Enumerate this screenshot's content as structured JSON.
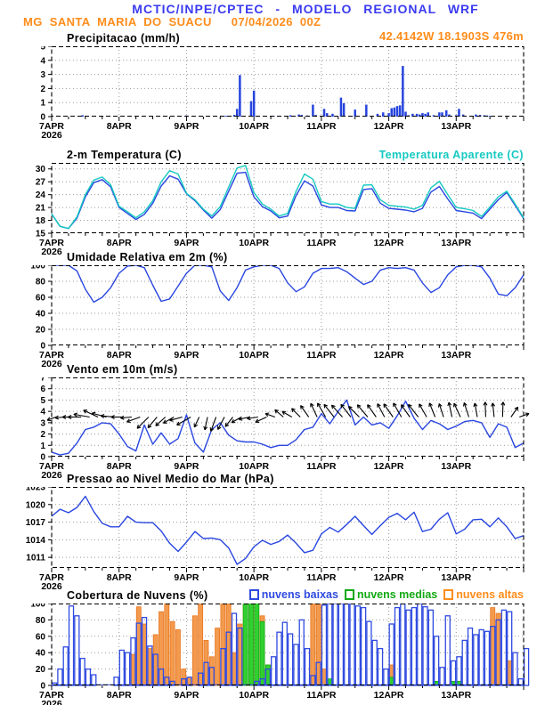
{
  "header": {
    "title": "MCTIC/INPE/CPTEC - MODELO REGIONAL WRF",
    "station": "MG SANTA MARIA DO SUACU",
    "run_datetime": "07/04/2026 00Z",
    "location": "42.4142W 18.1903S 476m"
  },
  "colors": {
    "title_blue": "#3b3bf2",
    "orange_text": "#ff8c1a",
    "line_blue": "#2946e0",
    "cyan": "#15c9c1",
    "precip_bar": "#2644dd",
    "cloud_low_stroke": "#2f4ae0",
    "cloud_mid_fill": "#30d030",
    "cloud_mid_stroke": "#13a913",
    "cloud_high_fill": "#f39a4e",
    "cloud_high_stroke": "#e8751d",
    "grid_gray": "#999999",
    "axis_black": "#000000"
  },
  "axis": {
    "day_labels": [
      "7APR",
      "8APR",
      "9APR",
      "10APR",
      "11APR",
      "12APR",
      "13APR"
    ],
    "year": "2026",
    "total_hours": 168,
    "minor_tick_hours": 6
  },
  "chart_data": [
    {
      "id": "precipitacao",
      "title": "Precipitacao (mm/h)",
      "type": "bar",
      "ylim": [
        0,
        5
      ],
      "yticks": [
        0,
        1,
        2,
        3,
        4,
        5
      ],
      "bars": {
        "h": [
          11,
          45.5,
          48,
          56,
          62,
          65,
          66,
          67,
          71,
          72,
          79,
          85,
          88,
          89,
          91,
          93,
          94,
          97,
          98,
          100,
          103,
          104,
          108,
          112,
          116,
          118,
          120,
          121,
          122,
          123,
          124,
          125,
          126,
          127,
          128.5,
          130,
          131,
          132,
          133,
          134,
          136,
          138,
          139,
          140.5,
          141.5,
          144,
          145,
          146.5,
          151,
          152.5,
          154,
          155,
          156
        ],
        "v": [
          0.1,
          0.06,
          0.08,
          0.05,
          0.06,
          0.12,
          0.55,
          2.95,
          1.1,
          1.85,
          0.06,
          0.1,
          0.15,
          0.12,
          0.08,
          0.85,
          0.12,
          0.55,
          0.25,
          0.2,
          1.35,
          0.95,
          0.5,
          0.85,
          0.2,
          0.3,
          0.25,
          0.6,
          0.65,
          0.75,
          0.8,
          3.6,
          0.35,
          0.1,
          0.2,
          0.2,
          0.15,
          0.25,
          0.2,
          0.3,
          0.1,
          0.3,
          0.3,
          0.45,
          0.15,
          0.1,
          0.55,
          0.15,
          0.15,
          0.12,
          0.1,
          0.08,
          0.05
        ]
      }
    },
    {
      "id": "temperatura",
      "title": "2-m Temperatura (C)",
      "type": "line",
      "step_hours": 3,
      "ylim": [
        15,
        31.4
      ],
      "yticks": [
        15,
        18,
        21,
        24,
        27,
        30
      ],
      "series": [
        {
          "name": "2-m Temperatura (C)",
          "color_key": "line_blue",
          "values": [
            19.5,
            16.6,
            16.1,
            18.5,
            23.5,
            26.8,
            27.5,
            25.8,
            21.0,
            19.6,
            18.2,
            19.4,
            22.0,
            26.0,
            28.4,
            27.6,
            24.2,
            22.6,
            20.4,
            18.5,
            20.5,
            24.8,
            29.0,
            29.2,
            23.5,
            21.2,
            20.2,
            18.6,
            19.0,
            23.8,
            27.2,
            26.0,
            21.6,
            21.0,
            21.0,
            20.3,
            20.2,
            25.2,
            25.4,
            22.0,
            20.8,
            20.6,
            20.4,
            20.0,
            20.8,
            24.6,
            25.9,
            23.0,
            20.3,
            20.0,
            19.7,
            18.4,
            20.6,
            22.8,
            24.5,
            21.5,
            18.4
          ]
        },
        {
          "name": "Temperatura Aparente (C)",
          "color_key": "cyan",
          "values": [
            19.5,
            16.6,
            16.1,
            18.8,
            24.0,
            27.4,
            28.1,
            26.3,
            21.3,
            20.0,
            18.6,
            20.0,
            22.6,
            27.0,
            29.6,
            28.8,
            24.3,
            22.8,
            20.6,
            19.0,
            21.2,
            25.8,
            30.2,
            30.8,
            24.5,
            21.8,
            20.6,
            19.0,
            19.6,
            24.8,
            28.8,
            27.6,
            22.4,
            21.8,
            21.8,
            21.0,
            20.8,
            26.2,
            26.3,
            22.8,
            21.5,
            21.3,
            21.1,
            20.6,
            21.5,
            25.6,
            27.1,
            24.0,
            21.0,
            20.7,
            20.3,
            18.9,
            21.1,
            23.5,
            24.8,
            21.8,
            18.6
          ]
        }
      ]
    },
    {
      "id": "umidade",
      "title": "Umidade Relativa em 2m (%)",
      "type": "line",
      "step_hours": 3,
      "ylim": [
        0,
        100
      ],
      "yticks": [
        0,
        20,
        40,
        60,
        80,
        100
      ],
      "series": [
        {
          "name": "Umidade Relativa em 2m (%)",
          "color_key": "line_blue",
          "values": [
            100,
            100,
            100,
            93,
            70,
            54,
            60,
            72,
            90,
            99,
            100,
            97,
            75,
            55,
            58,
            74,
            90,
            100,
            100,
            98,
            68,
            56,
            72,
            94,
            98,
            100,
            100,
            96,
            78,
            67,
            73,
            90,
            96,
            96,
            97,
            92,
            84,
            76,
            80,
            94,
            97,
            96,
            97,
            94,
            78,
            66,
            72,
            88,
            98,
            100,
            100,
            98,
            84,
            64,
            62,
            72,
            88
          ]
        }
      ]
    },
    {
      "id": "vento",
      "title": "Vento em 10m (m/s)",
      "type": "line",
      "step_hours": 3,
      "ylim": [
        0,
        7
      ],
      "yticks": [
        0,
        1,
        2,
        3,
        4,
        5,
        6,
        7
      ],
      "series": [
        {
          "name": "Vento em 10m (m/s)",
          "color_key": "line_blue",
          "values": [
            0.4,
            0.15,
            0.3,
            1.2,
            2.4,
            2.6,
            3.0,
            2.9,
            2.0,
            0.9,
            0.5,
            2.8,
            1.1,
            2.1,
            1.1,
            1.6,
            3.7,
            1.2,
            0.4,
            2.4,
            3.0,
            1.9,
            1.4,
            1.3,
            1.3,
            1.1,
            0.8,
            1.0,
            1.0,
            1.5,
            2.4,
            2.6,
            3.8,
            2.9,
            4.0,
            5.0,
            2.8,
            3.5,
            2.8,
            3.0,
            2.5,
            3.6,
            4.9,
            3.4,
            2.4,
            3.2,
            2.9,
            2.4,
            2.7,
            3.1,
            3.2,
            3.0,
            1.7,
            2.9,
            2.6,
            0.8,
            1.2
          ]
        }
      ],
      "arrows": {
        "baseline_value": 3.5,
        "step_hours": 3,
        "angles_deg": [
          200,
          185,
          180,
          180,
          170,
          155,
          165,
          175,
          180,
          185,
          200,
          225,
          230,
          222,
          210,
          195,
          210,
          245,
          258,
          250,
          242,
          232,
          210,
          192,
          188,
          205,
          160,
          140,
          150,
          135,
          125,
          115,
          120,
          128,
          132,
          128,
          135,
          130,
          125,
          118,
          125,
          120,
          125,
          128,
          120,
          112,
          108,
          102,
          115,
          108,
          100,
          92,
          96,
          88,
          55,
          20
        ],
        "mags": [
          0.3,
          0.3,
          0.4,
          0.7,
          1.0,
          1.0,
          0.9,
          0.8,
          0.6,
          0.5,
          0.8,
          1.0,
          0.8,
          0.7,
          0.6,
          0.7,
          1.0,
          0.5,
          0.7,
          0.9,
          0.8,
          0.6,
          0.5,
          0.5,
          0.5,
          0.6,
          0.4,
          0.5,
          0.5,
          0.6,
          0.8,
          0.9,
          1.0,
          1.0,
          1.0,
          1.0,
          0.9,
          1.0,
          0.9,
          0.9,
          1.0,
          1.0,
          0.9,
          1.0,
          0.9,
          0.9,
          0.8,
          0.9,
          0.9,
          0.9,
          0.8,
          0.9,
          0.8,
          0.9,
          0.6,
          0.4
        ]
      }
    },
    {
      "id": "pressao",
      "title": "Pressao ao Nivel Medio do Mar (hPa)",
      "type": "line",
      "step_hours": 3,
      "ylim": [
        1009.2,
        1023
      ],
      "yticks": [
        1011,
        1014,
        1017,
        1020,
        1023
      ],
      "series": [
        {
          "name": "Pressao ao Nivel Medio do Mar (hPa)",
          "color_key": "line_blue",
          "values": [
            1018.0,
            1019.2,
            1018.6,
            1019.5,
            1021.4,
            1018.8,
            1016.8,
            1016.2,
            1016.2,
            1018.0,
            1017.0,
            1016.9,
            1016.9,
            1015.5,
            1013.4,
            1012.0,
            1013.6,
            1015.4,
            1014.2,
            1014.3,
            1014.0,
            1012.6,
            1009.8,
            1010.8,
            1012.8,
            1013.9,
            1013.2,
            1013.7,
            1014.8,
            1013.4,
            1011.8,
            1012.2,
            1015.0,
            1016.1,
            1015.3,
            1016.6,
            1018.0,
            1016.4,
            1014.9,
            1016.4,
            1017.8,
            1018.5,
            1017.4,
            1018.7,
            1015.4,
            1015.8,
            1017.5,
            1018.6,
            1015.0,
            1015.8,
            1017.4,
            1017.5,
            1016.2,
            1017.7,
            1016.2,
            1014.2,
            1014.7
          ]
        }
      ]
    },
    {
      "id": "nuvens",
      "title": "Cobertura de Nuvens (%)",
      "type": "cloudbar",
      "step_hours": 2,
      "ylim": [
        0,
        100
      ],
      "yticks": [
        0,
        20,
        40,
        60,
        80,
        100
      ],
      "series": [
        {
          "name": "nuvens baixas",
          "style": "outline",
          "values": [
            3,
            20,
            47,
            97,
            85,
            33,
            20,
            13,
            0,
            0,
            0,
            10,
            43,
            40,
            58,
            76,
            83,
            48,
            38,
            20,
            10,
            5,
            0,
            8,
            10,
            0,
            15,
            28,
            22,
            0,
            45,
            65,
            88,
            70,
            0,
            0,
            5,
            8,
            20,
            35,
            65,
            77,
            63,
            50,
            80,
            45,
            12,
            28,
            98,
            100,
            100,
            100,
            100,
            100,
            97,
            95,
            78,
            55,
            45,
            20,
            75,
            95,
            100,
            92,
            95,
            100,
            96,
            92,
            60,
            22,
            85,
            30,
            35,
            55,
            70,
            62,
            68,
            66,
            72,
            80,
            92,
            90,
            40,
            8,
            45
          ]
        },
        {
          "name": "nuvens medias",
          "style": "fill-green",
          "values": [
            0,
            0,
            0,
            0,
            0,
            0,
            0,
            0,
            0,
            0,
            0,
            0,
            0,
            0,
            0,
            0,
            0,
            0,
            0,
            0,
            0,
            0,
            0,
            0,
            0,
            0,
            0,
            0,
            0,
            0,
            0,
            0,
            0,
            0,
            100,
            100,
            100,
            78,
            25,
            0,
            0,
            0,
            0,
            0,
            0,
            0,
            0,
            0,
            0,
            8,
            0,
            0,
            0,
            0,
            0,
            0,
            0,
            0,
            0,
            0,
            10,
            0,
            0,
            0,
            0,
            0,
            0,
            0,
            5,
            0,
            0,
            5,
            5,
            0,
            0,
            0,
            0,
            0,
            0,
            0,
            0,
            0,
            0,
            0,
            0
          ]
        },
        {
          "name": "nuvens altas",
          "style": "fill-orange",
          "values": [
            0,
            0,
            0,
            0,
            0,
            0,
            0,
            0,
            0,
            0,
            0,
            0,
            0,
            0,
            38,
            96,
            75,
            45,
            62,
            90,
            100,
            78,
            68,
            20,
            10,
            85,
            100,
            55,
            35,
            70,
            100,
            100,
            40,
            75,
            100,
            100,
            100,
            85,
            25,
            0,
            0,
            0,
            0,
            0,
            0,
            0,
            100,
            100,
            20,
            0,
            0,
            0,
            0,
            0,
            0,
            0,
            0,
            0,
            0,
            0,
            25,
            0,
            0,
            0,
            0,
            0,
            0,
            0,
            0,
            0,
            0,
            0,
            0,
            0,
            0,
            0,
            0,
            0,
            95,
            88,
            0,
            30,
            0,
            0,
            0
          ]
        }
      ]
    }
  ]
}
